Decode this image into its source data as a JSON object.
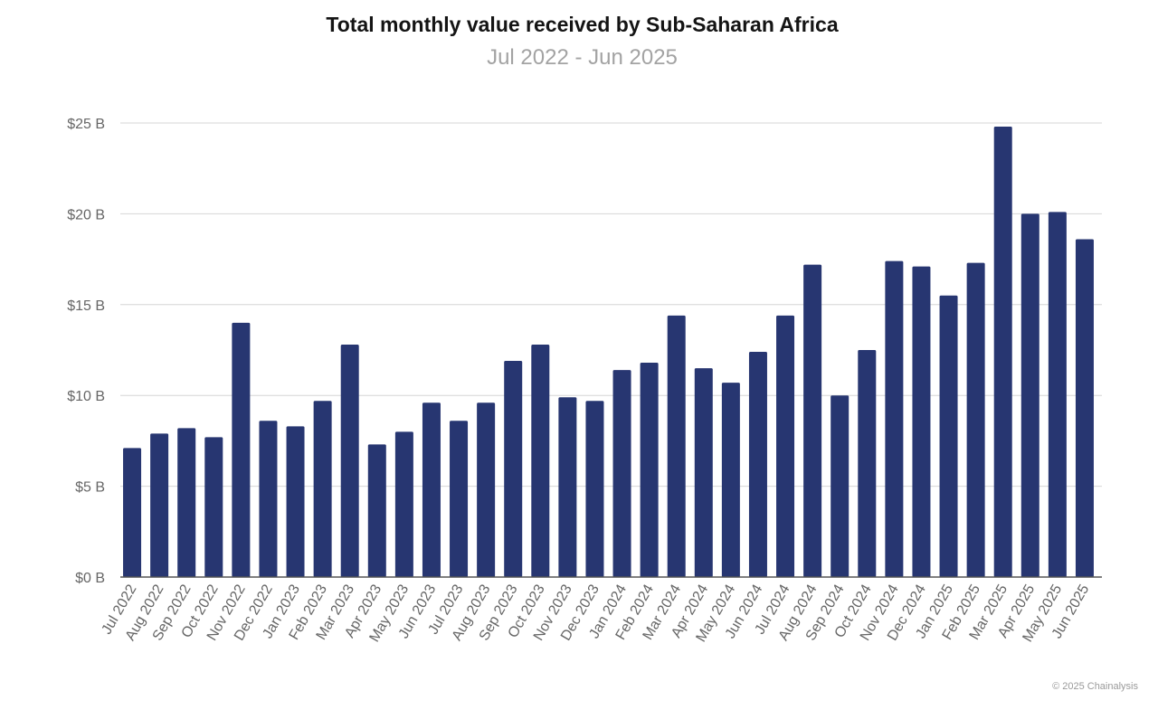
{
  "chart_data": {
    "type": "bar",
    "title": "Total monthly value received by Sub-Saharan Africa",
    "subtitle": "Jul 2022 - Jun 2025",
    "xlabel": "",
    "ylabel": "",
    "ylim": [
      0,
      25
    ],
    "yticks": [
      0,
      5,
      10,
      15,
      20,
      25
    ],
    "ytick_labels": [
      "$0 B",
      "$5 B",
      "$10 B",
      "$15 B",
      "$20 B",
      "$25 B"
    ],
    "grid": true,
    "bar_color": "#273671",
    "categories": [
      "Jul 2022",
      "Aug 2022",
      "Sep 2022",
      "Oct 2022",
      "Nov 2022",
      "Dec 2022",
      "Jan 2023",
      "Feb 2023",
      "Mar 2023",
      "Apr 2023",
      "May 2023",
      "Jun 2023",
      "Jul 2023",
      "Aug 2023",
      "Sep 2023",
      "Oct 2023",
      "Nov 2023",
      "Dec 2023",
      "Jan 2024",
      "Feb 2024",
      "Mar 2024",
      "Apr 2024",
      "May 2024",
      "Jun 2024",
      "Jul 2024",
      "Aug 2024",
      "Sep 2024",
      "Oct 2024",
      "Nov 2024",
      "Dec 2024",
      "Jan 2025",
      "Feb 2025",
      "Mar 2025",
      "Apr 2025",
      "May 2025",
      "Jun 2025"
    ],
    "values": [
      7.1,
      7.9,
      8.2,
      7.7,
      14.0,
      8.6,
      8.3,
      9.7,
      12.8,
      7.3,
      8.0,
      9.6,
      8.6,
      9.6,
      11.9,
      12.8,
      9.9,
      9.7,
      11.4,
      11.8,
      14.4,
      11.5,
      10.7,
      12.4,
      14.4,
      17.2,
      10.0,
      12.5,
      17.4,
      17.1,
      15.5,
      17.3,
      24.8,
      20.0,
      20.1,
      18.6
    ]
  },
  "footer": {
    "copyright": "© 2025 Chainalysis"
  }
}
